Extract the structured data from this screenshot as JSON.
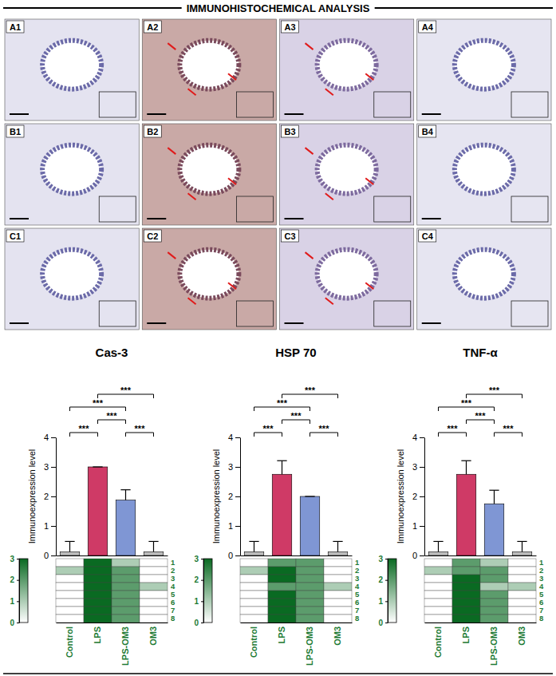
{
  "header": {
    "title": "IMMUNOHISTOCHEMICAL ANALYSIS"
  },
  "panels": [
    "A1",
    "A2",
    "A3",
    "A4",
    "B1",
    "B2",
    "B3",
    "B4",
    "C1",
    "C2",
    "C3",
    "C4"
  ],
  "chart_data": [
    {
      "type": "bar",
      "title": "Cas-3",
      "y_label": "Immunoexpression level",
      "categories": [
        "Control",
        "LPS",
        "LPS-OM3",
        "OM3"
      ],
      "values": [
        0.125,
        3.0,
        1.875,
        0.125
      ],
      "errors": [
        0.35,
        0,
        0.35,
        0.35
      ],
      "colors": [
        "#bdbdbd",
        "#cf3a66",
        "#7f96d4",
        "#bdbdbd"
      ],
      "ylim": [
        0,
        4
      ],
      "yticks": [
        0,
        1,
        2,
        3,
        4
      ],
      "grid": false,
      "comparisons": [
        {
          "groups": [
            "Control",
            "LPS"
          ],
          "label": "***"
        },
        {
          "groups": [
            "Control",
            "LPS-OM3"
          ],
          "label": "***"
        },
        {
          "groups": [
            "LPS",
            "LPS-OM3"
          ],
          "label": "***"
        },
        {
          "groups": [
            "LPS",
            "OM3"
          ],
          "label": "***"
        },
        {
          "groups": [
            "LPS-OM3",
            "OM3"
          ],
          "label": "***"
        }
      ],
      "heatmap": {
        "rows": [
          1,
          2,
          3,
          4,
          5,
          6,
          7,
          8
        ],
        "values": [
          [
            0,
            3,
            1,
            0
          ],
          [
            1,
            3,
            2,
            0
          ],
          [
            0,
            3,
            2,
            0
          ],
          [
            0,
            3,
            2,
            1
          ],
          [
            0,
            3,
            2,
            0
          ],
          [
            0,
            3,
            2,
            0
          ],
          [
            0,
            3,
            2,
            0
          ],
          [
            0,
            3,
            2,
            0
          ]
        ],
        "colorbar_range": [
          0,
          3
        ],
        "colorbar_ticks": [
          0,
          1,
          2,
          3
        ]
      }
    },
    {
      "type": "bar",
      "title": "HSP 70",
      "y_label": "Immunoexpression level",
      "categories": [
        "Control",
        "LPS",
        "LPS-OM3",
        "OM3"
      ],
      "values": [
        0.125,
        2.75,
        2.0,
        0.125
      ],
      "errors": [
        0.35,
        0.46,
        0,
        0.35
      ],
      "colors": [
        "#bdbdbd",
        "#cf3a66",
        "#7f96d4",
        "#bdbdbd"
      ],
      "ylim": [
        0,
        4
      ],
      "yticks": [
        0,
        1,
        2,
        3,
        4
      ],
      "grid": false,
      "comparisons": [
        {
          "groups": [
            "Control",
            "LPS"
          ],
          "label": "***"
        },
        {
          "groups": [
            "Control",
            "LPS-OM3"
          ],
          "label": "***"
        },
        {
          "groups": [
            "LPS",
            "LPS-OM3"
          ],
          "label": "***"
        },
        {
          "groups": [
            "LPS",
            "OM3"
          ],
          "label": "***"
        },
        {
          "groups": [
            "LPS-OM3",
            "OM3"
          ],
          "label": "***"
        }
      ],
      "heatmap": {
        "rows": [
          1,
          2,
          3,
          4,
          5,
          6,
          7,
          8
        ],
        "values": [
          [
            0,
            2,
            2,
            0
          ],
          [
            1,
            3,
            2,
            0
          ],
          [
            0,
            3,
            2,
            0
          ],
          [
            0,
            2,
            2,
            1
          ],
          [
            0,
            3,
            2,
            0
          ],
          [
            0,
            3,
            2,
            0
          ],
          [
            0,
            3,
            2,
            0
          ],
          [
            0,
            3,
            2,
            0
          ]
        ],
        "colorbar_range": [
          0,
          3
        ],
        "colorbar_ticks": [
          0,
          1,
          2,
          3
        ]
      }
    },
    {
      "type": "bar",
      "title": "TNF-α",
      "y_label": "Immunoexpression level",
      "categories": [
        "Control",
        "LPS",
        "LPS-OM3",
        "OM3"
      ],
      "values": [
        0.125,
        2.75,
        1.75,
        0.125
      ],
      "errors": [
        0.35,
        0.46,
        0.46,
        0.35
      ],
      "colors": [
        "#bdbdbd",
        "#cf3a66",
        "#7f96d4",
        "#bdbdbd"
      ],
      "ylim": [
        0,
        4
      ],
      "yticks": [
        0,
        1,
        2,
        3,
        4
      ],
      "grid": false,
      "comparisons": [
        {
          "groups": [
            "Control",
            "LPS"
          ],
          "label": "***"
        },
        {
          "groups": [
            "Control",
            "LPS-OM3"
          ],
          "label": "***"
        },
        {
          "groups": [
            "LPS",
            "LPS-OM3"
          ],
          "label": "***"
        },
        {
          "groups": [
            "LPS",
            "OM3"
          ],
          "label": "***"
        },
        {
          "groups": [
            "LPS-OM3",
            "OM3"
          ],
          "label": "***"
        }
      ],
      "heatmap": {
        "rows": [
          1,
          2,
          3,
          4,
          5,
          6,
          7,
          8
        ],
        "values": [
          [
            0,
            2,
            1,
            0
          ],
          [
            1,
            2,
            2,
            0
          ],
          [
            0,
            3,
            2,
            0
          ],
          [
            0,
            3,
            1,
            1
          ],
          [
            0,
            3,
            2,
            0
          ],
          [
            0,
            3,
            2,
            0
          ],
          [
            0,
            3,
            2,
            0
          ],
          [
            0,
            3,
            2,
            0
          ]
        ],
        "colorbar_range": [
          0,
          3
        ],
        "colorbar_ticks": [
          0,
          1,
          2,
          3
        ]
      }
    }
  ]
}
